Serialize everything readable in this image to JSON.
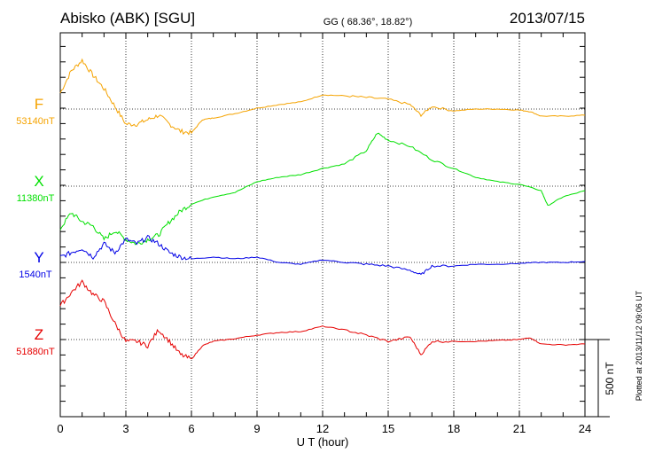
{
  "header": {
    "station": "Abisko (ABK)  [SGU]",
    "coords": "GG ( 68.36°,  18.82°)",
    "date": "2013/07/15"
  },
  "footer": {
    "plotted": "Plotted at 2013/11/12 09:06 UT",
    "scale_label": "500 nT"
  },
  "colors": {
    "F": "#f5a300",
    "X": "#00e000",
    "Y": "#0000e6",
    "Z": "#e60000"
  },
  "chart_data": {
    "type": "line",
    "title": "Abisko (ABK)  [SGU]",
    "xlabel": "U T (hour)",
    "ylabel": "",
    "xlim": [
      0,
      24
    ],
    "x_ticks": [
      "0",
      "3",
      "6",
      "9",
      "12",
      "15",
      "18",
      "21",
      "24"
    ],
    "scale_nT": 500,
    "grid": "dotted vertical every 3 h, dotted baselines per component",
    "units": "nT deviation from baseline",
    "series": [
      {
        "name": "F",
        "baseline": "53140nT",
        "x": [
          0,
          0.5,
          1,
          1.5,
          2,
          2.5,
          3,
          3.5,
          4,
          4.5,
          5,
          5.5,
          6,
          6.5,
          7,
          8,
          9,
          10,
          11,
          12,
          13,
          14,
          15,
          16,
          16.5,
          17,
          18,
          19,
          20,
          21,
          21.5,
          22,
          23,
          24
        ],
        "values": [
          104,
          247,
          316,
          218,
          132,
          17,
          -98,
          -98,
          -69,
          -40,
          -98,
          -144,
          -155,
          -69,
          -58,
          -29,
          6,
          29,
          46,
          92,
          86,
          75,
          63,
          29,
          -40,
          17,
          -12,
          0,
          0,
          -6,
          -17,
          -46,
          -46,
          -40
        ]
      },
      {
        "name": "X",
        "baseline": "11380nT",
        "x": [
          0,
          0.5,
          1,
          1.5,
          2,
          2.5,
          3,
          3.5,
          4,
          4.5,
          5,
          5.5,
          6,
          7,
          8,
          9,
          10,
          11,
          12,
          13,
          14,
          14.5,
          15,
          16,
          17,
          18,
          19,
          20,
          21,
          22,
          22.3,
          23,
          24
        ],
        "values": [
          -276,
          -172,
          -230,
          -259,
          -345,
          -288,
          -345,
          -374,
          -345,
          -316,
          -230,
          -161,
          -115,
          -69,
          -40,
          29,
          58,
          75,
          115,
          144,
          230,
          345,
          299,
          259,
          172,
          115,
          58,
          29,
          12,
          -29,
          -126,
          -69,
          -29
        ]
      },
      {
        "name": "Y",
        "baseline": "1540nT",
        "x": [
          0,
          0.5,
          1,
          1.5,
          2,
          2.5,
          3,
          3.5,
          4,
          4.5,
          5,
          5.5,
          6,
          7,
          8,
          9,
          10,
          11,
          12,
          13,
          14,
          15,
          16,
          16.5,
          17,
          18,
          19,
          20,
          21,
          22,
          23,
          24
        ],
        "values": [
          35,
          63,
          92,
          35,
          121,
          63,
          150,
          121,
          161,
          121,
          63,
          35,
          23,
          35,
          23,
          35,
          0,
          -12,
          17,
          0,
          -12,
          -23,
          -52,
          -80,
          -23,
          -23,
          -12,
          -12,
          -6,
          0,
          0,
          6
        ]
      },
      {
        "name": "Z",
        "baseline": "51880nT",
        "x": [
          0,
          0.5,
          1,
          1.5,
          2,
          2.5,
          3,
          3.5,
          4,
          4.5,
          5,
          5.5,
          6,
          6.5,
          7,
          8,
          9,
          10,
          11,
          12,
          13,
          14,
          15,
          16,
          16.5,
          17,
          18,
          19,
          20,
          21,
          21.5,
          22,
          23,
          24
        ],
        "values": [
          218,
          305,
          374,
          293,
          247,
          104,
          -12,
          -12,
          -40,
          63,
          -12,
          -98,
          -127,
          -40,
          -12,
          6,
          29,
          46,
          52,
          86,
          63,
          29,
          -12,
          17,
          -98,
          -12,
          -12,
          -12,
          -6,
          0,
          12,
          -29,
          -35,
          -29
        ]
      }
    ]
  }
}
